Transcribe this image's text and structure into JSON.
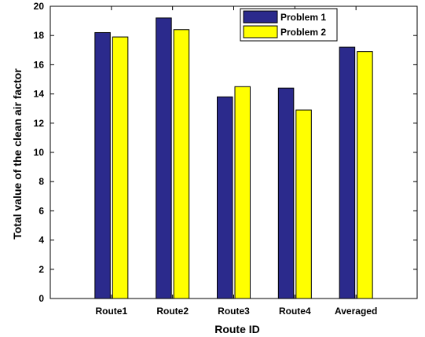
{
  "chart_data": {
    "type": "bar",
    "xlabel": "Route ID",
    "ylabel": "Total value of the clean air factor",
    "categories": [
      "Route1",
      "Route2",
      "Route3",
      "Route4",
      "Averaged"
    ],
    "series": [
      {
        "name": "Problem 1",
        "values": [
          18.2,
          19.2,
          13.8,
          14.4,
          17.2
        ],
        "color": "#2b2a8c"
      },
      {
        "name": "Problem 2",
        "values": [
          17.9,
          18.4,
          14.5,
          12.9,
          16.9
        ],
        "color": "#ffff00"
      }
    ],
    "ylim": [
      0,
      20
    ],
    "yticks": [
      "0",
      "2",
      "4",
      "6",
      "8",
      "10",
      "12",
      "14",
      "16",
      "18",
      "20"
    ],
    "grid": false,
    "legend_position": "top-right"
  }
}
